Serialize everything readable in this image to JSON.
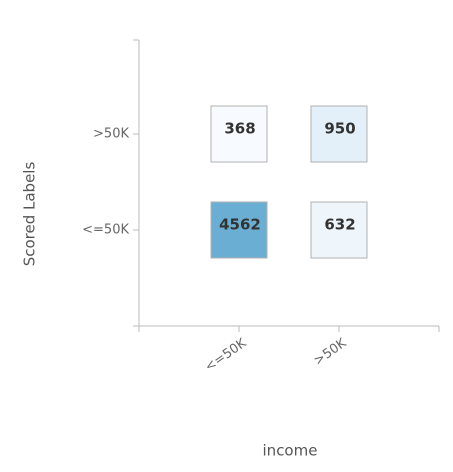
{
  "chart_data": {
    "type": "heatmap",
    "x_label": "income",
    "y_label": "Scored Labels",
    "x_categories": [
      "<=50K",
      ">50K"
    ],
    "y_categories": [
      ">50K",
      "<=50K"
    ],
    "values": [
      [
        368,
        950
      ],
      [
        4562,
        632
      ]
    ],
    "color_range": [
      "#f7fbff",
      "#6aaed3"
    ],
    "cell_border": "#b0b0b0"
  }
}
